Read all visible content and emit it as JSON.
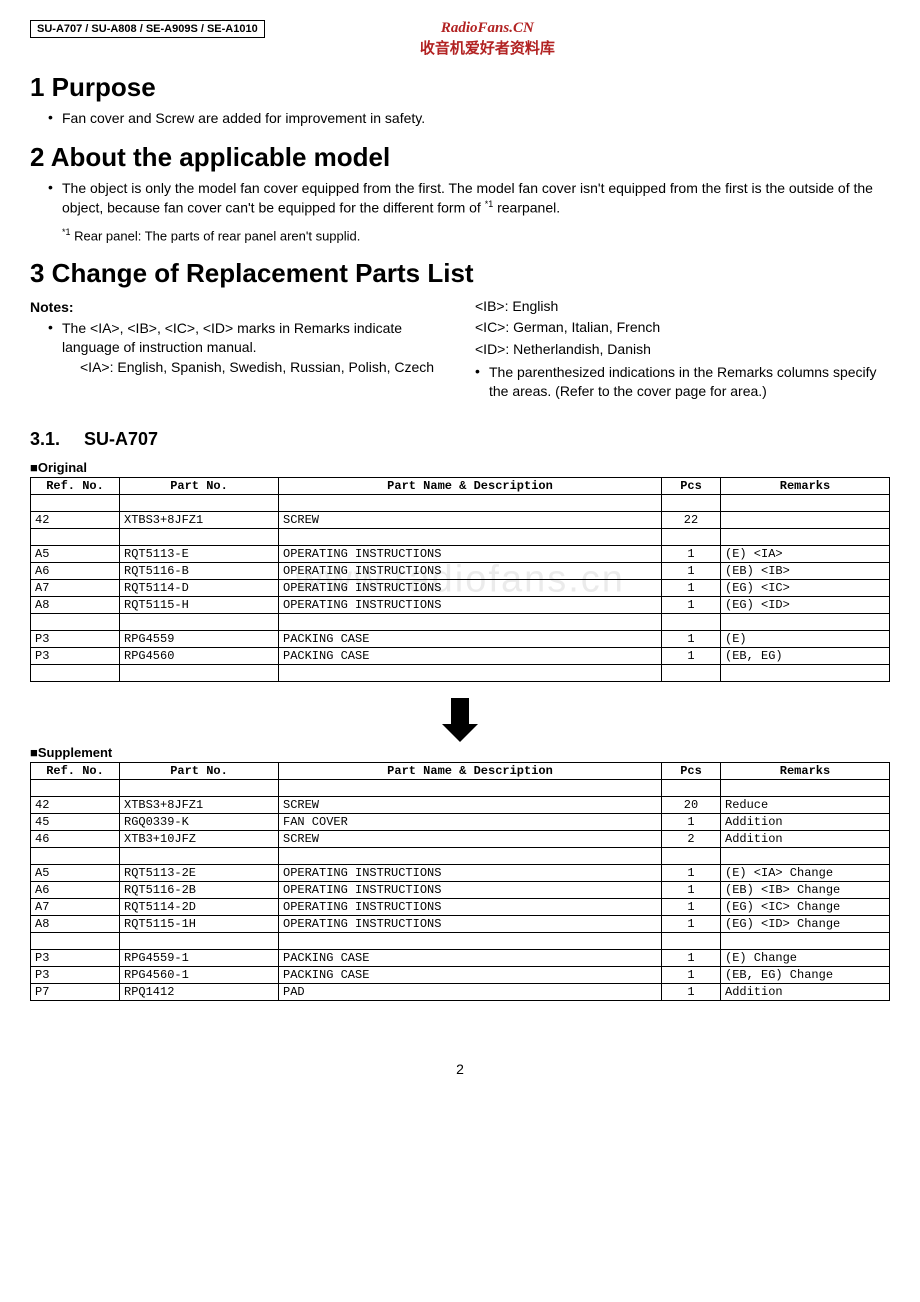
{
  "header": {
    "model_box": "SU-A707 / SU-A808 / SE-A909S / SE-A1010",
    "brand_en": "RadioFans.CN",
    "brand_cn": "收音机爱好者资料库"
  },
  "section1": {
    "title": "1   Purpose",
    "bullet": "Fan cover and Screw are added for improvement in safety."
  },
  "section2": {
    "title": "2   About the applicable model",
    "bullet": "The object is only the model fan cover equipped from the first. The model fan cover isn't equipped from the first is the outside of the object, because fan cover can't be equipped for the different form of ",
    "sup": "*1",
    "bullet_end": " rearpanel.",
    "footnote_sup": "*1",
    "footnote": " Rear panel: The parts of rear panel aren't supplid."
  },
  "section3": {
    "title": "3   Change of Replacement Parts List",
    "notes_label": "Notes:",
    "left_bullet": "The <IA>, <IB>, <IC>, <ID> marks in Remarks indicate language of instruction manual.",
    "left_ia": "<IA>: English, Spanish, Swedish, Russian, Polish, Czech",
    "right_ib": "<IB>: English",
    "right_ic": "<IC>: German, Italian, French",
    "right_id": "<ID>: Netherlandish, Danish",
    "right_bullet": "The parenthesized indications in the Remarks columns specify the areas. (Refer to the cover page for area.)"
  },
  "subsection": {
    "num": "3.1.",
    "title": "SU-A707"
  },
  "table_headers": {
    "ref": "Ref. No.",
    "part": "Part No.",
    "name": "Part Name & Description",
    "pcs": "Pcs",
    "remarks": "Remarks"
  },
  "original": {
    "label": "■Original",
    "rows": [
      {
        "ref": "",
        "part": "",
        "name": "",
        "pcs": "",
        "rem": ""
      },
      {
        "ref": "42",
        "part": "XTBS3+8JFZ1",
        "name": "SCREW",
        "pcs": "22",
        "rem": ""
      },
      {
        "ref": "",
        "part": "",
        "name": "",
        "pcs": "",
        "rem": ""
      },
      {
        "ref": "A5",
        "part": "RQT5113-E",
        "name": "OPERATING INSTRUCTIONS",
        "pcs": "1",
        "rem": "(E) <IA>"
      },
      {
        "ref": "A6",
        "part": "RQT5116-B",
        "name": "OPERATING INSTRUCTIONS",
        "pcs": "1",
        "rem": "(EB) <IB>"
      },
      {
        "ref": "A7",
        "part": "RQT5114-D",
        "name": "OPERATING INSTRUCTIONS",
        "pcs": "1",
        "rem": "(EG) <IC>"
      },
      {
        "ref": "A8",
        "part": "RQT5115-H",
        "name": "OPERATING INSTRUCTIONS",
        "pcs": "1",
        "rem": "(EG) <ID>"
      },
      {
        "ref": "",
        "part": "",
        "name": "",
        "pcs": "",
        "rem": ""
      },
      {
        "ref": "P3",
        "part": "RPG4559",
        "name": "PACKING CASE",
        "pcs": "1",
        "rem": "(E)"
      },
      {
        "ref": "P3",
        "part": "RPG4560",
        "name": "PACKING CASE",
        "pcs": "1",
        "rem": "(EB, EG)"
      },
      {
        "ref": "",
        "part": "",
        "name": "",
        "pcs": "",
        "rem": ""
      }
    ]
  },
  "watermark": "www.radiofans.cn",
  "supplement": {
    "label": "■Supplement",
    "rows": [
      {
        "ref": "",
        "part": "",
        "name": "",
        "pcs": "",
        "rem": ""
      },
      {
        "ref": "42",
        "part": "XTBS3+8JFZ1",
        "name": "SCREW",
        "pcs": "20",
        "rem": "Reduce"
      },
      {
        "ref": "45",
        "part": "RGQ0339-K",
        "name": "FAN COVER",
        "pcs": "1",
        "rem": "Addition"
      },
      {
        "ref": "46",
        "part": "XTB3+10JFZ",
        "name": "SCREW",
        "pcs": "2",
        "rem": "Addition"
      },
      {
        "ref": "",
        "part": "",
        "name": "",
        "pcs": "",
        "rem": ""
      },
      {
        "ref": "A5",
        "part": "RQT5113-2E",
        "name": "OPERATING INSTRUCTIONS",
        "pcs": "1",
        "rem": "(E) <IA> Change"
      },
      {
        "ref": "A6",
        "part": "RQT5116-2B",
        "name": "OPERATING INSTRUCTIONS",
        "pcs": "1",
        "rem": "(EB) <IB> Change"
      },
      {
        "ref": "A7",
        "part": "RQT5114-2D",
        "name": "OPERATING INSTRUCTIONS",
        "pcs": "1",
        "rem": "(EG) <IC> Change"
      },
      {
        "ref": "A8",
        "part": "RQT5115-1H",
        "name": "OPERATING INSTRUCTIONS",
        "pcs": "1",
        "rem": "(EG) <ID> Change"
      },
      {
        "ref": "",
        "part": "",
        "name": "",
        "pcs": "",
        "rem": ""
      },
      {
        "ref": "P3",
        "part": "RPG4559-1",
        "name": "PACKING CASE",
        "pcs": "1",
        "rem": "(E) Change"
      },
      {
        "ref": "P3",
        "part": "RPG4560-1",
        "name": "PACKING CASE",
        "pcs": "1",
        "rem": "(EB, EG) Change"
      },
      {
        "ref": "P7",
        "part": "RPQ1412",
        "name": "PAD",
        "pcs": "1",
        "rem": "Addition"
      }
    ]
  },
  "page_number": "2",
  "style": {
    "brand_color": "#b22222",
    "border_color": "#000000",
    "background": "#ffffff",
    "body_font_size": 14,
    "h1_font_size": 26,
    "h2_font_size": 18,
    "table_font_size": 12,
    "table_font": "Courier New"
  }
}
